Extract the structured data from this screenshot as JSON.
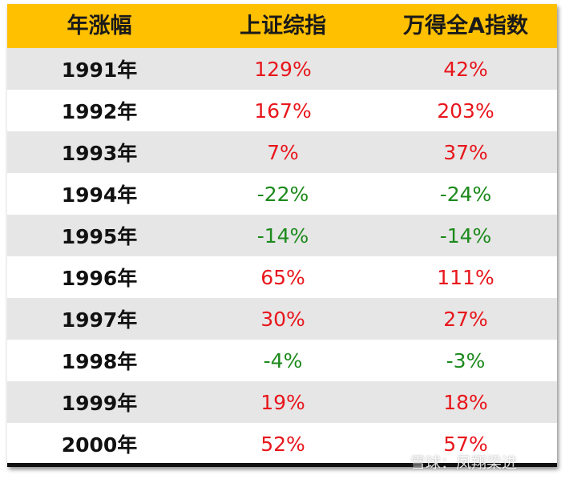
{
  "header": {
    "col1": "年涨幅",
    "col2": "上证综指",
    "col3": "万得全A指数"
  },
  "rows": [
    {
      "year": "1991年",
      "sh": "129%",
      "wind": "42%"
    },
    {
      "year": "1992年",
      "sh": "167%",
      "wind": "203%"
    },
    {
      "year": "1993年",
      "sh": "7%",
      "wind": "37%"
    },
    {
      "year": "1994年",
      "sh": "-22%",
      "wind": "-24%"
    },
    {
      "year": "1995年",
      "sh": "-14%",
      "wind": "-14%"
    },
    {
      "year": "1996年",
      "sh": "65%",
      "wind": "111%"
    },
    {
      "year": "1997年",
      "sh": "30%",
      "wind": "27%"
    },
    {
      "year": "1998年",
      "sh": "-4%",
      "wind": "-3%"
    },
    {
      "year": "1999年",
      "sh": "19%",
      "wind": "18%"
    },
    {
      "year": "2000年",
      "sh": "52%",
      "wind": "57%"
    }
  ],
  "colors": {
    "header_bg": "#ffc000",
    "positive": "#e8161c",
    "negative": "#1c8a1c",
    "shaded_row": "#e6e6e6"
  },
  "watermark": "雪球：凤翔梁进"
}
